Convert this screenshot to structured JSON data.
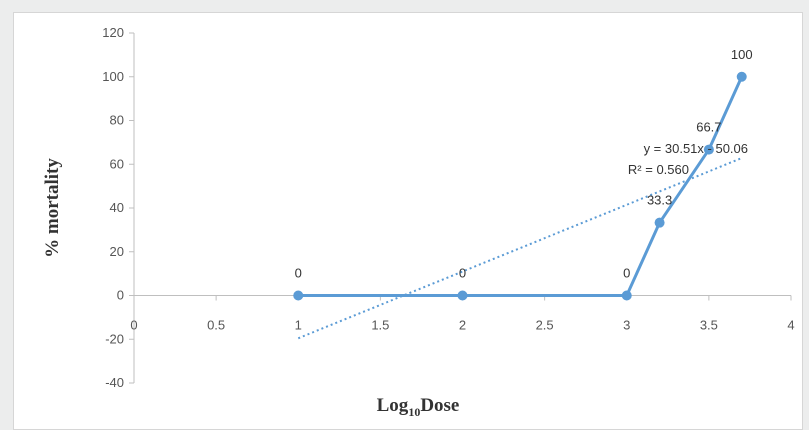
{
  "chart_data": {
    "type": "scatter",
    "xlabel": "Log",
    "xlabel_sub": "10",
    "xlabel_suffix": "Dose",
    "ylabel": "% mortality",
    "xlim": [
      0,
      4
    ],
    "ylim": [
      -40,
      120
    ],
    "x_ticks": [
      "0",
      "0.5",
      "1",
      "1.5",
      "2",
      "2.5",
      "3",
      "3.5",
      "4"
    ],
    "y_ticks": [
      "-40",
      "-20",
      "0",
      "20",
      "40",
      "60",
      "80",
      "100",
      "120"
    ],
    "grid": false,
    "series": [
      {
        "x": [
          1,
          2,
          3,
          3.2,
          3.5,
          3.7
        ],
        "y": [
          0,
          0,
          0,
          33.3,
          66.7,
          100
        ],
        "labels": [
          "0",
          "0",
          "0",
          "33.3",
          "66.7",
          "100"
        ],
        "color": "#5b9bd5",
        "marker": "circle",
        "line": "solid"
      }
    ],
    "trendline": {
      "type": "linear",
      "slope": 30.51,
      "intercept": -50.06,
      "x_range": [
        1,
        3.7
      ],
      "color": "#5b9bd5",
      "line": "dotted",
      "equation": "y = 30.51x - 50.06",
      "r_squared": "R² = 0.560"
    }
  }
}
